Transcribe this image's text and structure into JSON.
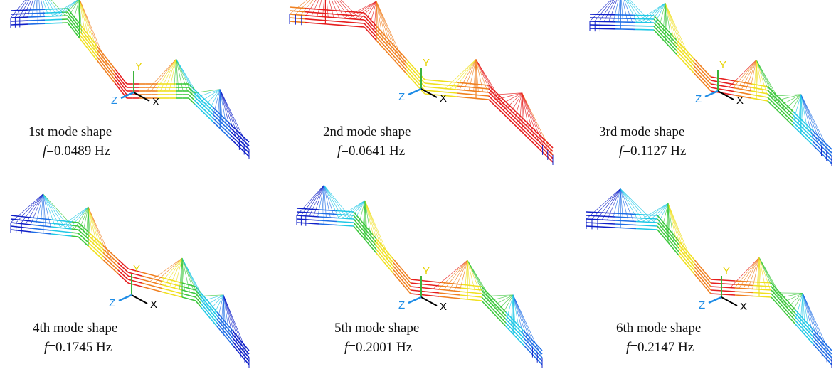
{
  "panels": [
    {
      "id": "m1",
      "title": "1st mode shape",
      "freq_symbol": "f",
      "freq_value": "=0.0489 Hz",
      "shape": "antisymmetric-bend",
      "coloring": "center-red"
    },
    {
      "id": "m2",
      "title": "2nd mode shape",
      "freq_symbol": "f",
      "freq_value": "=0.0641 Hz",
      "shape": "antisymmetric-bend",
      "coloring": "all-red"
    },
    {
      "id": "m3",
      "title": "3rd mode shape",
      "freq_symbol": "f",
      "freq_value": "=0.1127 Hz",
      "shape": "s-curve",
      "coloring": "diagonal-red"
    },
    {
      "id": "m4",
      "title": "4th mode shape",
      "freq_symbol": "f",
      "freq_value": "=0.1745 Hz",
      "shape": "antisymmetric-bend",
      "coloring": "center-red"
    },
    {
      "id": "m5",
      "title": "5th mode shape",
      "freq_symbol": "f",
      "freq_value": "=0.2001 Hz",
      "shape": "s-curve",
      "coloring": "diagonal-red"
    },
    {
      "id": "m6",
      "title": "6th mode shape",
      "freq_symbol": "f",
      "freq_value": "=0.2147 Hz",
      "shape": "s-curve",
      "coloring": "diagonal-red"
    }
  ],
  "axis_labels": {
    "x": "X",
    "y": "Y",
    "z": "Z"
  },
  "colors": {
    "deep_blue": "#1020c8",
    "blue": "#1e6ee6",
    "cyan": "#20c8e6",
    "green": "#3cc83c",
    "yellow": "#f0e020",
    "orange": "#f08020",
    "red": "#e61e1e",
    "axis_x": "#000000",
    "axis_y": "#e6d200",
    "axis_z": "#1e8ce6",
    "axis_green": "#3cb43c"
  }
}
